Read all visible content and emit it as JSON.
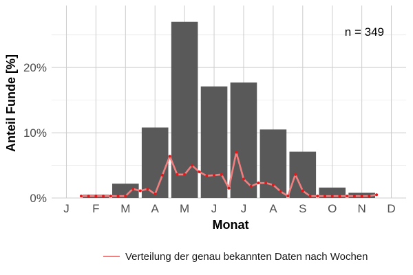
{
  "chart_data": {
    "type": "bar",
    "categories": [
      "J",
      "F",
      "M",
      "A",
      "M",
      "J",
      "J",
      "A",
      "S",
      "O",
      "N",
      "D"
    ],
    "values": [
      0,
      0.5,
      2.2,
      10.8,
      27.0,
      17.1,
      17.7,
      10.5,
      7.1,
      1.6,
      0.8,
      0
    ],
    "series": [
      {
        "name": "Verteilung der genau bekannten Daten nach Wochen",
        "type": "line",
        "x": [
          1.5,
          1.75,
          2.0,
          2.25,
          2.5,
          2.75,
          3.0,
          3.25,
          3.5,
          3.75,
          4.0,
          4.25,
          4.5,
          4.75,
          5.0,
          5.25,
          5.5,
          5.75,
          6.0,
          6.25,
          6.5,
          6.75,
          7.0,
          7.25,
          7.5,
          7.75,
          8.0,
          8.25,
          8.5,
          8.75,
          9.0,
          9.25,
          9.5,
          9.75,
          10.0,
          10.25,
          10.5,
          10.75,
          11.0,
          11.25,
          11.5
        ],
        "values": [
          0.3,
          0.3,
          0.3,
          0.3,
          0.3,
          0.3,
          0.3,
          1.4,
          1.1,
          1.4,
          0.6,
          3.5,
          6.4,
          3.6,
          3.6,
          5.0,
          4.0,
          3.4,
          3.5,
          3.6,
          1.5,
          7.0,
          2.9,
          1.8,
          2.3,
          2.3,
          2.0,
          1.0,
          0.3,
          3.6,
          1.1,
          0.3,
          0.3,
          0.3,
          0.3,
          0.3,
          0.3,
          0.3,
          0.3,
          0.3,
          0.5
        ],
        "color": "#f08080",
        "marker_color": "#e31a1c"
      }
    ],
    "bar_color": "#595959",
    "xlabel": "Monat",
    "ylabel": "Anteil Funde [%]",
    "xlim": [
      0.5,
      12.5
    ],
    "ylim": [
      0,
      29.5
    ],
    "yticks": [
      0,
      10,
      20
    ],
    "ytick_labels": [
      "0%",
      "10%",
      "20%"
    ],
    "annotation": "n = 349",
    "legend": {
      "position": "bottom",
      "label": "Verteilung der genau bekannten Daten nach Wochen"
    },
    "grid": true
  }
}
